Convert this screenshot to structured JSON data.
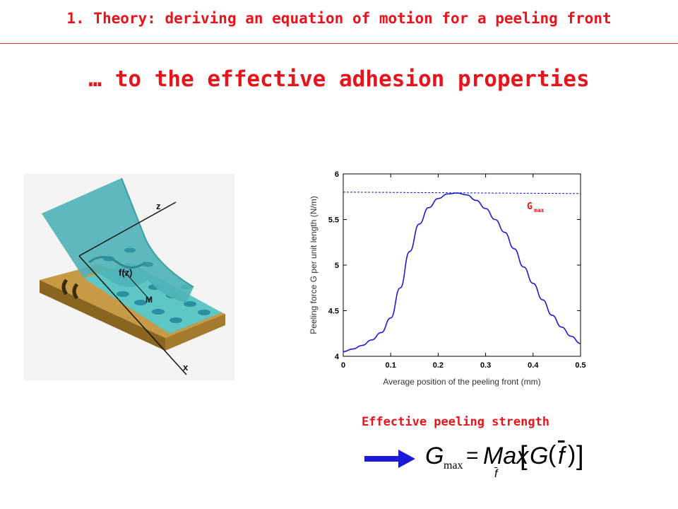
{
  "header": {
    "title": "1. Theory: deriving an equation of motion for a peeling front"
  },
  "slide": {
    "title": "… to the effective adhesion properties"
  },
  "illustration": {
    "label_z": "z",
    "label_x": "x",
    "label_fz": "f(z)",
    "label_m": "M"
  },
  "chart_data": {
    "type": "line",
    "xlabel": "Average position of the peeling front (mm)",
    "ylabel": "Peeling force G per unit length (N/m)",
    "xlim": [
      0,
      0.5
    ],
    "ylim": [
      4,
      6
    ],
    "xticks": [
      "0",
      "0.1",
      "0.2",
      "0.3",
      "0.4",
      "0.5"
    ],
    "yticks": [
      "4",
      "4.5",
      "5",
      "5.5",
      "6"
    ],
    "grid": false,
    "series": [
      {
        "color": "#1a1ad8",
        "x": [
          0,
          0.02,
          0.04,
          0.06,
          0.08,
          0.1,
          0.12,
          0.14,
          0.16,
          0.18,
          0.2,
          0.22,
          0.24,
          0.26,
          0.28,
          0.3,
          0.32,
          0.34,
          0.36,
          0.38,
          0.4,
          0.42,
          0.44,
          0.46,
          0.48,
          0.5
        ],
        "y": [
          4.05,
          4.08,
          4.12,
          4.18,
          4.26,
          4.42,
          4.75,
          5.15,
          5.45,
          5.63,
          5.73,
          5.78,
          5.79,
          5.77,
          5.71,
          5.62,
          5.5,
          5.36,
          5.18,
          4.98,
          4.8,
          4.62,
          4.45,
          4.32,
          4.22,
          4.14
        ]
      }
    ],
    "annotation": {
      "label": "G",
      "subscript": "max",
      "value": 5.8,
      "line_color": "#1a1ad8"
    }
  },
  "caption": {
    "label": "Effective peeling strength"
  },
  "formula": {
    "g": "G",
    "sub": "max",
    "eq": "=",
    "max": "Max",
    "lb": "[",
    "g2": "G",
    "lp": "(",
    "fbar": "f",
    "rp": ")",
    "rb": "]",
    "under": "f"
  },
  "colors": {
    "accent": "#e8141c",
    "curve": "#1a1ad8",
    "arrow": "#1a1ad8",
    "film": "#4fb3b8",
    "substrate": "#c9a04a"
  }
}
